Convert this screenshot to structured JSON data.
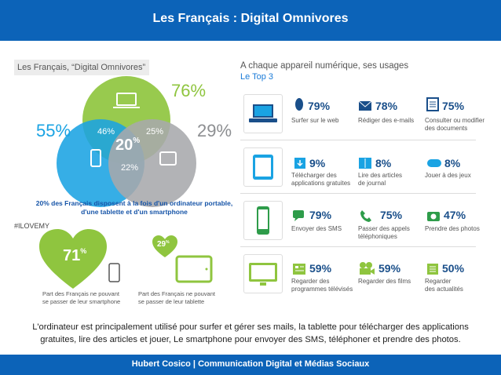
{
  "header": {
    "title": "Les Français : Digital Omnivores"
  },
  "left": {
    "box_title": "Les Français, “Digital Omnivores”",
    "pct_laptop": "76%",
    "pct_phone": "55%",
    "pct_tablet": "29%",
    "inner_left": "46%",
    "inner_right": "25%",
    "inner_center": "20",
    "inner_center_sup": "%",
    "inner_bottom": "22%",
    "caption_line1": "20% des Français disposent à la fois d'un ordinateur portable,",
    "caption_line2": "d'une tablette et d'un smartphone",
    "hashtag": "#ILOVEMY",
    "heart1_value": "71",
    "heart1_sup": "%",
    "heart1_label_l1": "Part des Français ne pouvant",
    "heart1_label_l2": "se passer de leur smartphone",
    "heart2_value": "29",
    "heart2_sup": "%",
    "heart2_label_l1": "Part des Français ne pouvant",
    "heart2_label_l2": "se passer de leur tablette",
    "colors": {
      "green": "#8fc53f",
      "blue": "#1aa3e3",
      "gray": "#a7a9ac",
      "dark_blue": "#1755a8"
    }
  },
  "right": {
    "title": "A chaque appareil numérique, ses usages",
    "subtitle": "Le Top 3",
    "rows": [
      {
        "device": "laptop-icon",
        "items": [
          {
            "icon": "mouse-icon",
            "pct": "79%",
            "l1": "Surfer sur le web",
            "l2": ""
          },
          {
            "icon": "envelope-icon",
            "pct": "78%",
            "l1": "Rédiger des e-mails",
            "l2": ""
          },
          {
            "icon": "document-icon",
            "pct": "75%",
            "l1": "Consulter ou modifier",
            "l2": "des documents"
          }
        ]
      },
      {
        "device": "tablet-icon",
        "items": [
          {
            "icon": "download-icon",
            "pct": "9%",
            "l1": "Télécharger des",
            "l2": "applications gratuites"
          },
          {
            "icon": "book-icon",
            "pct": "8%",
            "l1": "Lire des articles",
            "l2": "de journal"
          },
          {
            "icon": "gamepad-icon",
            "pct": "8%",
            "l1": "Jouer à des jeux",
            "l2": ""
          }
        ]
      },
      {
        "device": "smartphone-icon",
        "items": [
          {
            "icon": "chat-icon",
            "pct": "79%",
            "l1": "Envoyer des SMS",
            "l2": ""
          },
          {
            "icon": "phone-icon",
            "pct": "75%",
            "l1": "Passer des appels",
            "l2": "téléphoniques"
          },
          {
            "icon": "camera-icon",
            "pct": "47%",
            "l1": "Prendre des photos",
            "l2": ""
          }
        ]
      },
      {
        "device": "tv-icon",
        "items": [
          {
            "icon": "tv-program-icon",
            "pct": "59%",
            "l1": "Regarder des",
            "l2": "programmes télévisés"
          },
          {
            "icon": "film-camera-icon",
            "pct": "59%",
            "l1": "Regarder des films",
            "l2": ""
          },
          {
            "icon": "news-icon",
            "pct": "50%",
            "l1": "Regarder",
            "l2": "des actualités"
          }
        ]
      }
    ],
    "colors": {
      "blue": "#1aa3e3",
      "green": "#2e9c4a",
      "lime": "#8fc53f",
      "navy": "#1a4f8a"
    }
  },
  "caption": {
    "line1": "L'ordinateur est principalement utilisé pour surfer et gérer ses mails, la tablette pour télécharger des applications",
    "line2": "gratuites, lire des articles et jouer, Le smartphone pour envoyer des SMS, téléphoner et prendre des photos."
  },
  "footer": {
    "text": "Hubert Cosico | Communication Digital et Médias Sociaux"
  }
}
